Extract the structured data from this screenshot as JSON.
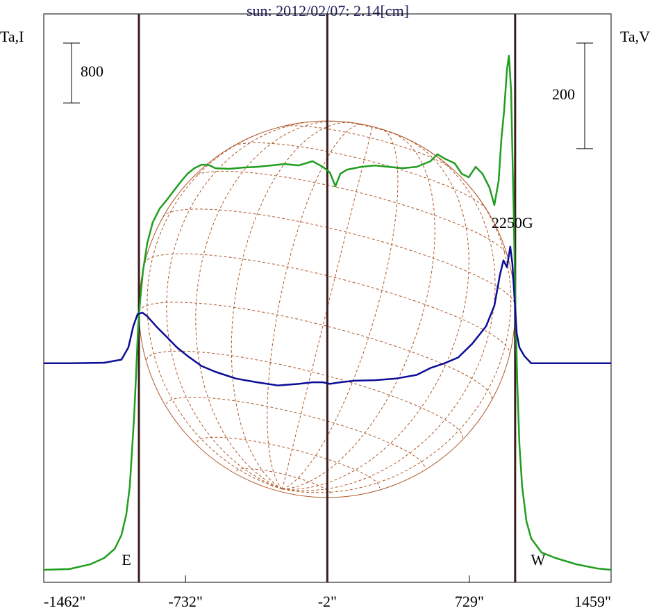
{
  "chart_data": {
    "type": "line",
    "title": "sun: 2012/02/07: 2.14[cm]",
    "y_label": "Ta,I",
    "y2_label": "Ta,V",
    "xlim": [
      -1462,
      1459
    ],
    "xticks": [
      {
        "value": -1462,
        "label": "-1462\""
      },
      {
        "value": -732,
        "label": "-732\""
      },
      {
        "value": -2,
        "label": "-2\""
      },
      {
        "value": 729,
        "label": "729\""
      },
      {
        "value": 1459,
        "label": "1459\""
      }
    ],
    "ylim": [
      0,
      7600
    ],
    "y2lim": [
      -415,
      662
    ],
    "scale_bars": [
      {
        "value": 800,
        "axis": "y"
      },
      {
        "value": 200,
        "axis": "y2"
      }
    ],
    "vlines": [
      -972,
      -2,
      965
    ],
    "vline_color": "#3a1c1c",
    "disk_color": "#b0582a",
    "annotations": [
      {
        "text": "E",
        "x": -972
      },
      {
        "text": "W",
        "x": 965
      },
      {
        "text": "2250G",
        "x": 965
      }
    ],
    "series": [
      {
        "name": "Ta,I",
        "color": "#1f9e1f",
        "x": [
          -1462,
          -1330,
          -1222,
          -1151,
          -1097,
          -1062,
          -1037,
          -1019,
          -1008,
          -997,
          -987,
          -976,
          -965,
          -951,
          -929,
          -901,
          -865,
          -829,
          -794,
          -758,
          -722,
          -686,
          -650,
          -615,
          -579,
          -508,
          -436,
          -364,
          -293,
          -221,
          -150,
          -78,
          -25,
          11,
          40,
          65,
          100,
          172,
          243,
          315,
          386,
          458,
          529,
          565,
          601,
          654,
          690,
          726,
          762,
          797,
          833,
          858,
          880,
          894,
          908,
          923,
          933,
          944,
          951,
          958,
          965,
          976,
          987,
          1001,
          1023,
          1048,
          1101,
          1173,
          1280,
          1387,
          1459
        ],
        "values": [
          167,
          177,
          242,
          325,
          446,
          632,
          910,
          1282,
          1747,
          2211,
          2768,
          3419,
          3790,
          4162,
          4534,
          4812,
          4998,
          5110,
          5230,
          5351,
          5463,
          5537,
          5583,
          5583,
          5537,
          5528,
          5546,
          5555,
          5574,
          5593,
          5574,
          5630,
          5555,
          5481,
          5295,
          5463,
          5518,
          5555,
          5574,
          5555,
          5537,
          5555,
          5630,
          5723,
          5667,
          5602,
          5463,
          5416,
          5555,
          5463,
          5277,
          5044,
          5370,
          5927,
          6299,
          6856,
          7042,
          6577,
          5741,
          4905,
          3883,
          2676,
          1839,
          1282,
          818,
          585,
          399,
          325,
          242,
          186,
          167
        ]
      },
      {
        "name": "Ta,V",
        "color": "#0c0c96",
        "axis": "y2",
        "x": [
          -1462,
          -1330,
          -1151,
          -1062,
          -1026,
          -1001,
          -979,
          -954,
          -929,
          -883,
          -829,
          -776,
          -722,
          -650,
          -579,
          -472,
          -364,
          -257,
          -150,
          -78,
          -25,
          11,
          65,
          136,
          243,
          351,
          458,
          529,
          601,
          672,
          744,
          815,
          858,
          887,
          905,
          923,
          940,
          951,
          962,
          973,
          987,
          1012,
          1048,
          1101,
          1244,
          1459
        ],
        "values": [
          0,
          0,
          1,
          7,
          30,
          70,
          93,
          96,
          89,
          70,
          50,
          30,
          14,
          -5,
          -16,
          -29,
          -36,
          -42,
          -39,
          -36,
          -36,
          -39,
          -36,
          -33,
          -32,
          -29,
          -22,
          -9,
          0,
          11,
          37,
          70,
          109,
          168,
          195,
          182,
          221,
          188,
          122,
          57,
          30,
          14,
          0,
          0,
          0,
          0
        ]
      }
    ]
  }
}
